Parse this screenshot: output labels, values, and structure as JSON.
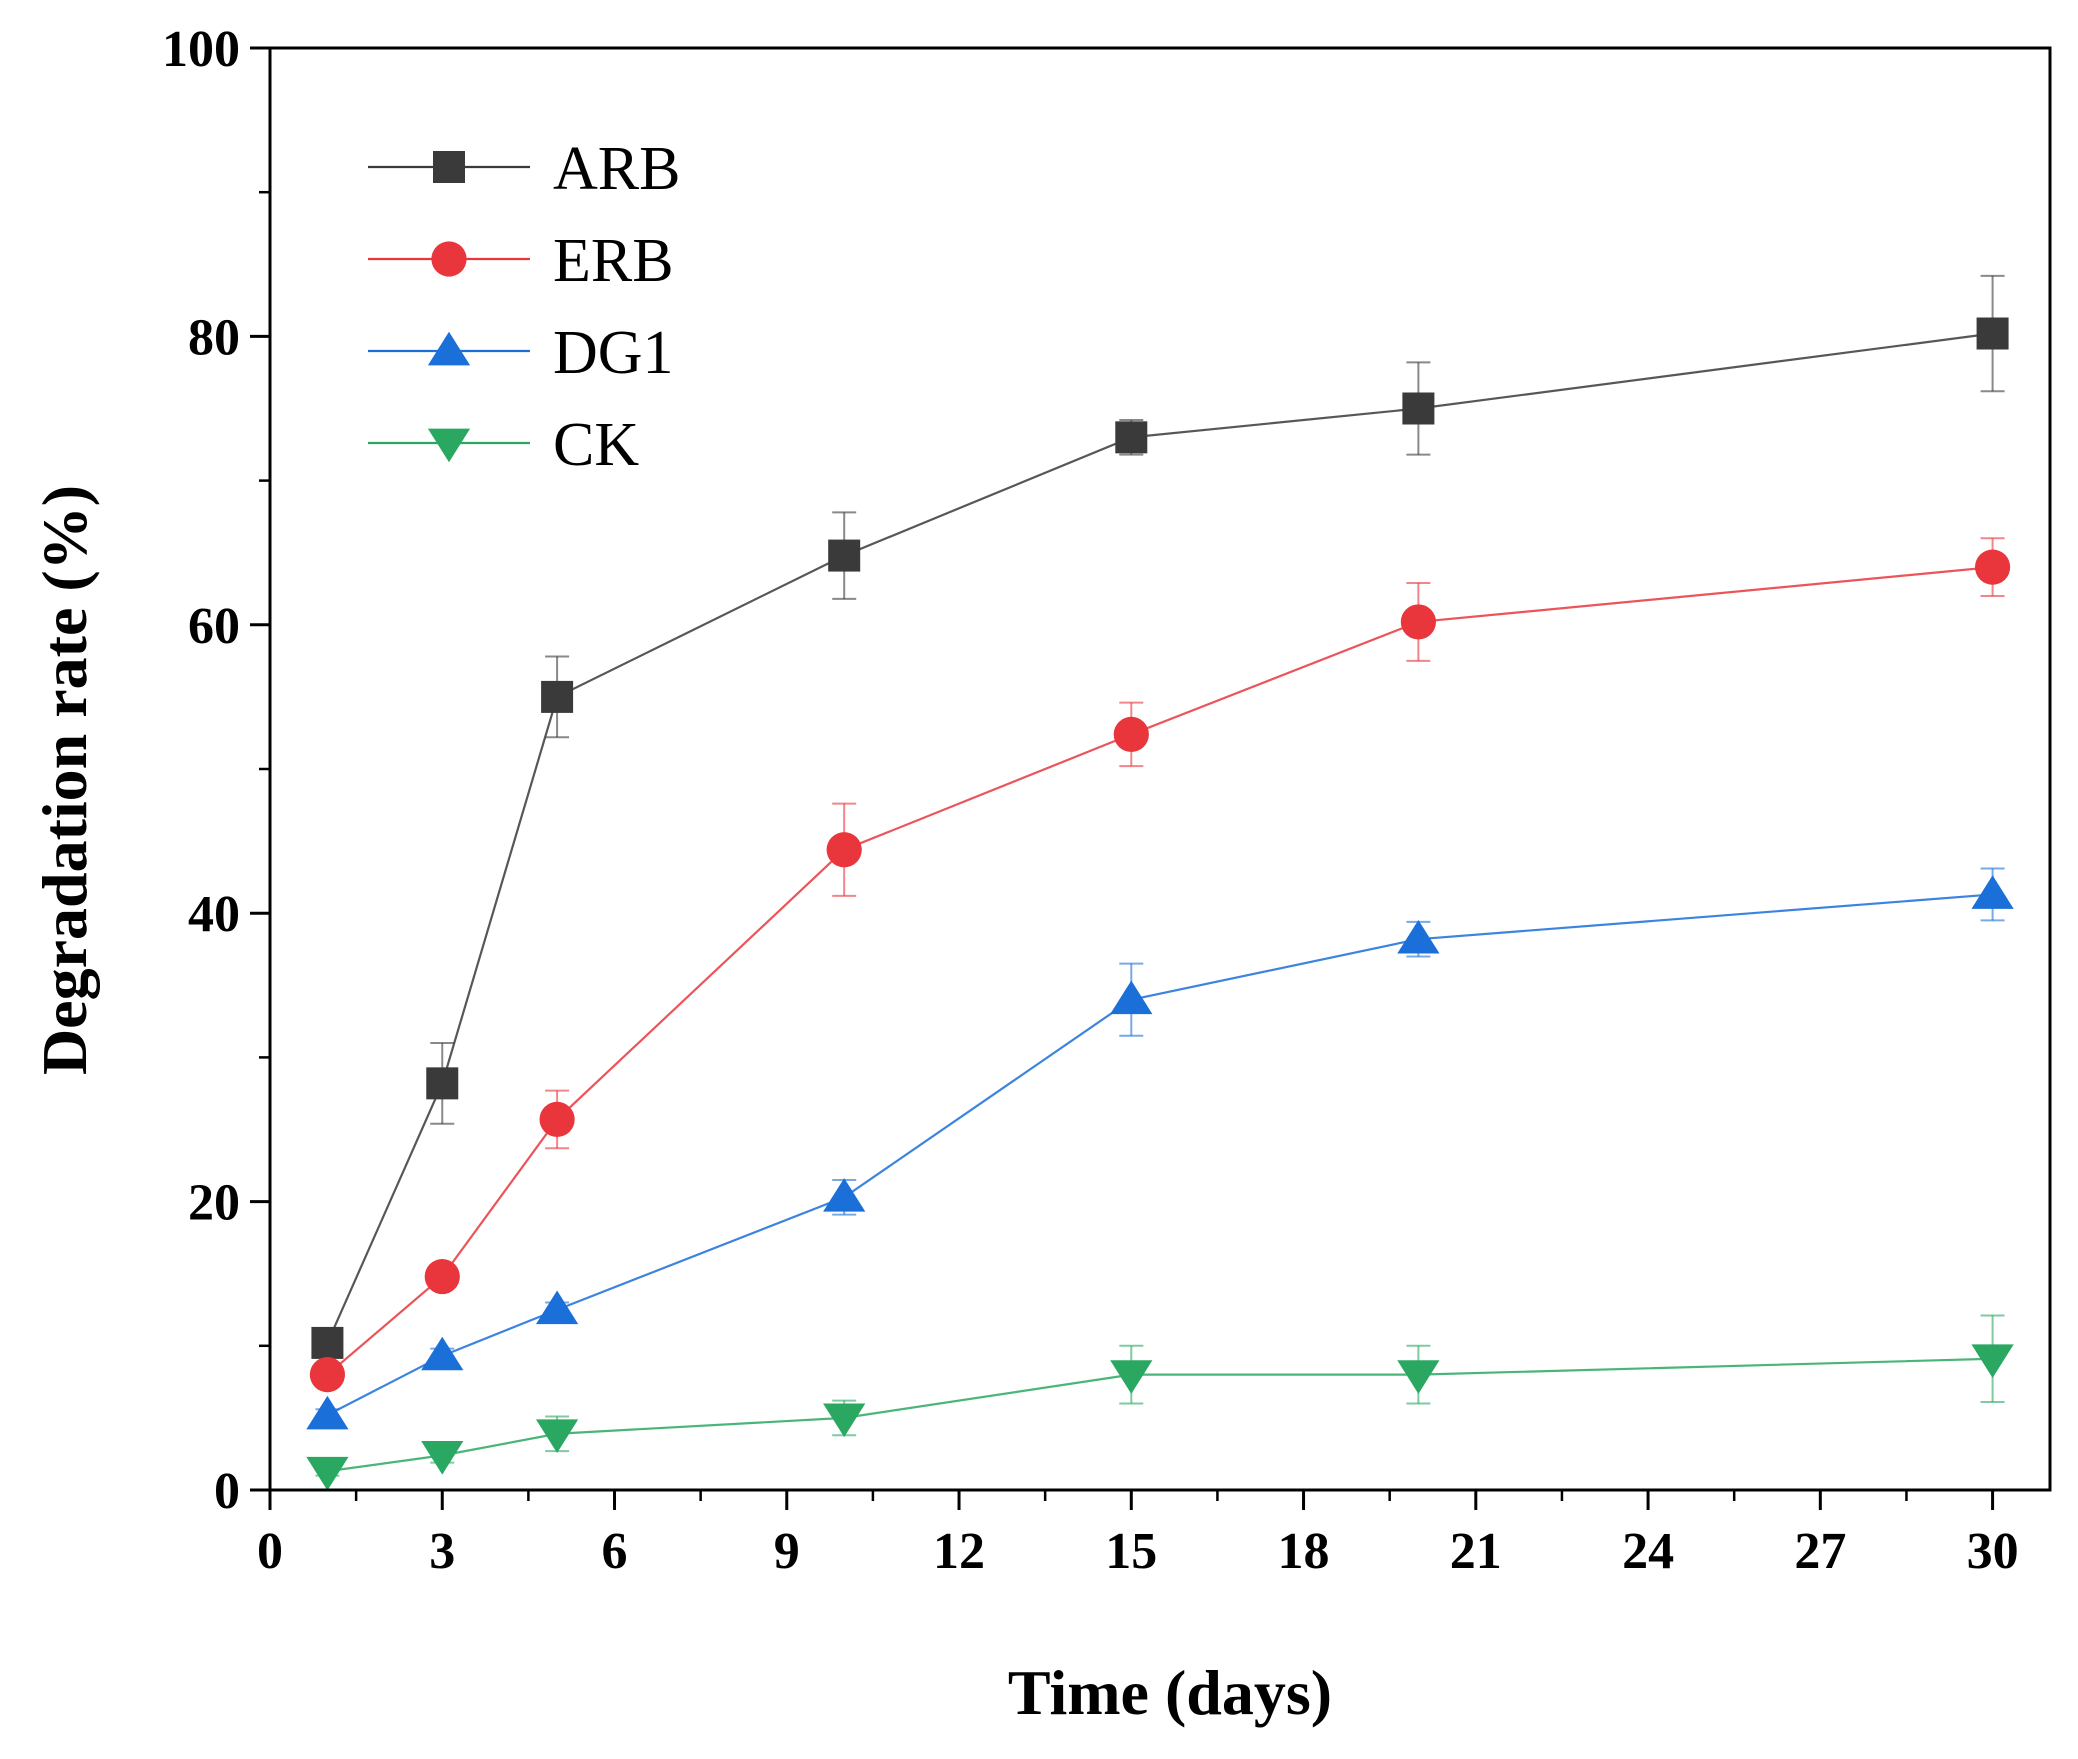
{
  "chart_data": {
    "type": "line",
    "title": "",
    "xlabel": "Time (days)",
    "ylabel": "Degradation rate (%)",
    "xlim": [
      0,
      31
    ],
    "ylim": [
      0,
      100
    ],
    "xticks": [
      0,
      3,
      6,
      9,
      12,
      15,
      18,
      21,
      24,
      27,
      30
    ],
    "yticks": [
      0,
      20,
      40,
      60,
      80,
      100
    ],
    "grid": false,
    "legend_position": "top-left",
    "x": [
      1,
      3,
      5,
      10,
      15,
      20,
      30
    ],
    "series": [
      {
        "name": "ARB",
        "color": "#3a3a3a",
        "marker": "square",
        "values": [
          10.2,
          28.2,
          55.0,
          64.8,
          73.0,
          75.0,
          80.2
        ],
        "errors": [
          0.6,
          2.8,
          2.8,
          3.0,
          1.2,
          3.2,
          4.0
        ]
      },
      {
        "name": "ERB",
        "color": "#e8363c",
        "marker": "circle",
        "values": [
          8.0,
          14.8,
          25.7,
          44.4,
          52.4,
          60.2,
          64.0
        ],
        "errors": [
          0.5,
          0.6,
          2.0,
          3.2,
          2.2,
          2.7,
          2.0
        ]
      },
      {
        "name": "DG1",
        "color": "#1a6fd8",
        "marker": "triangle-up",
        "values": [
          5.2,
          9.3,
          12.5,
          20.3,
          34.0,
          38.2,
          41.3
        ],
        "errors": [
          0.4,
          0.5,
          0.5,
          1.2,
          2.5,
          1.2,
          1.8
        ]
      },
      {
        "name": "CK",
        "color": "#2aa862",
        "marker": "triangle-down",
        "values": [
          1.3,
          2.4,
          3.9,
          5.0,
          8.0,
          8.0,
          9.1
        ],
        "errors": [
          0.3,
          0.5,
          1.2,
          1.2,
          2.0,
          2.0,
          3.0
        ]
      }
    ]
  }
}
